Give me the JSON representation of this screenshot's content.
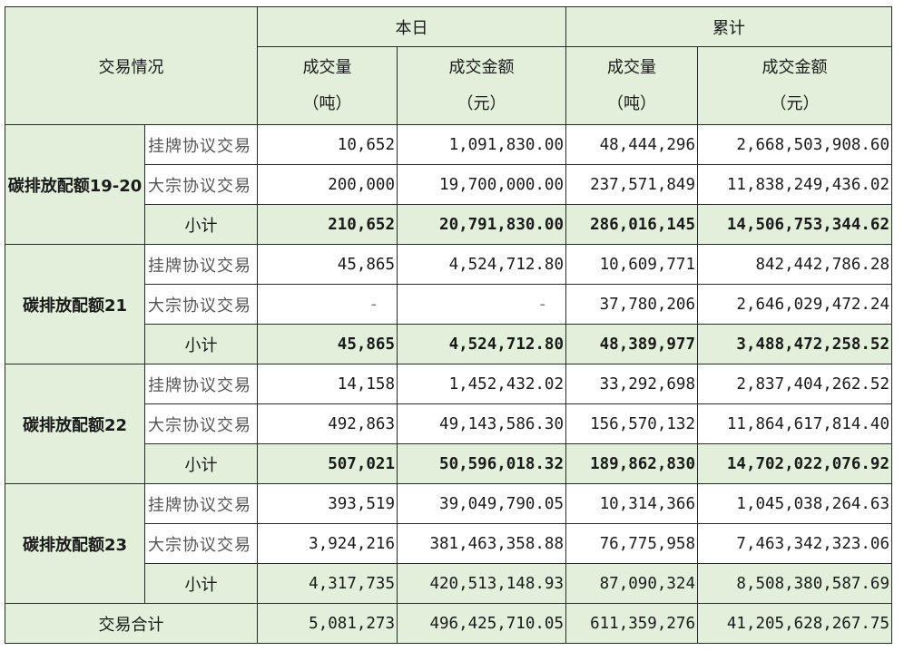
{
  "header": {
    "section_label": "交易情况",
    "today_label": "本日",
    "cumulative_label": "累计",
    "volume_label": "成交量",
    "volume_unit": "（吨）",
    "amount_label": "成交金额",
    "amount_unit": "（元）"
  },
  "groups": [
    {
      "name": "碳排放配额19-20",
      "rows": [
        {
          "type": "挂牌协议交易",
          "today_volume": "10,652",
          "today_amount": "1,091,830.00",
          "cum_volume": "48,444,296",
          "cum_amount": "2,668,503,908.60"
        },
        {
          "type": "大宗协议交易",
          "today_volume": "200,000",
          "today_amount": "19,700,000.00",
          "cum_volume": "237,571,849",
          "cum_amount": "11,838,249,436.02"
        }
      ],
      "subtotal": {
        "label": "小计",
        "today_volume": "210,652",
        "today_amount": "20,791,830.00",
        "cum_volume": "286,016,145",
        "cum_amount": "14,506,753,344.62"
      }
    },
    {
      "name": "碳排放配额21",
      "rows": [
        {
          "type": "挂牌协议交易",
          "today_volume": "45,865",
          "today_amount": "4,524,712.80",
          "cum_volume": "10,609,771",
          "cum_amount": "842,442,786.28"
        },
        {
          "type": "大宗协议交易",
          "today_volume": "-",
          "today_amount": "-",
          "cum_volume": "37,780,206",
          "cum_amount": "2,646,029,472.24"
        }
      ],
      "subtotal": {
        "label": "小计",
        "today_volume": "45,865",
        "today_amount": "4,524,712.80",
        "cum_volume": "48,389,977",
        "cum_amount": "3,488,472,258.52"
      }
    },
    {
      "name": "碳排放配额22",
      "rows": [
        {
          "type": "挂牌协议交易",
          "today_volume": "14,158",
          "today_amount": "1,452,432.02",
          "cum_volume": "33,292,698",
          "cum_amount": "2,837,404,262.52"
        },
        {
          "type": "大宗协议交易",
          "today_volume": "492,863",
          "today_amount": "49,143,586.30",
          "cum_volume": "156,570,132",
          "cum_amount": "11,864,617,814.40"
        }
      ],
      "subtotal": {
        "label": "小计",
        "today_volume": "507,021",
        "today_amount": "50,596,018.32",
        "cum_volume": "189,862,830",
        "cum_amount": "14,702,022,076.92"
      }
    },
    {
      "name": "碳排放配额23",
      "rows": [
        {
          "type": "挂牌协议交易",
          "today_volume": "393,519",
          "today_amount": "39,049,790.05",
          "cum_volume": "10,314,366",
          "cum_amount": "1,045,038,264.63"
        },
        {
          "type": "大宗协议交易",
          "today_volume": "3,924,216",
          "today_amount": "381,463,358.88",
          "cum_volume": "76,775,958",
          "cum_amount": "7,463,342,323.06"
        }
      ],
      "subtotal": {
        "label": "小计",
        "today_volume": "4,317,735",
        "today_amount": "420,513,148.93",
        "cum_volume": "87,090,324",
        "cum_amount": "8,508,380,587.69"
      }
    }
  ],
  "total": {
    "label": "交易合计",
    "today_volume": "5,081,273",
    "today_amount": "496,425,710.05",
    "cum_volume": "611,359,276",
    "cum_amount": "41,205,628,267.75"
  },
  "colors": {
    "header_green": "#e2efda",
    "border": "#2b2b2b",
    "muted_text": "#555555"
  }
}
